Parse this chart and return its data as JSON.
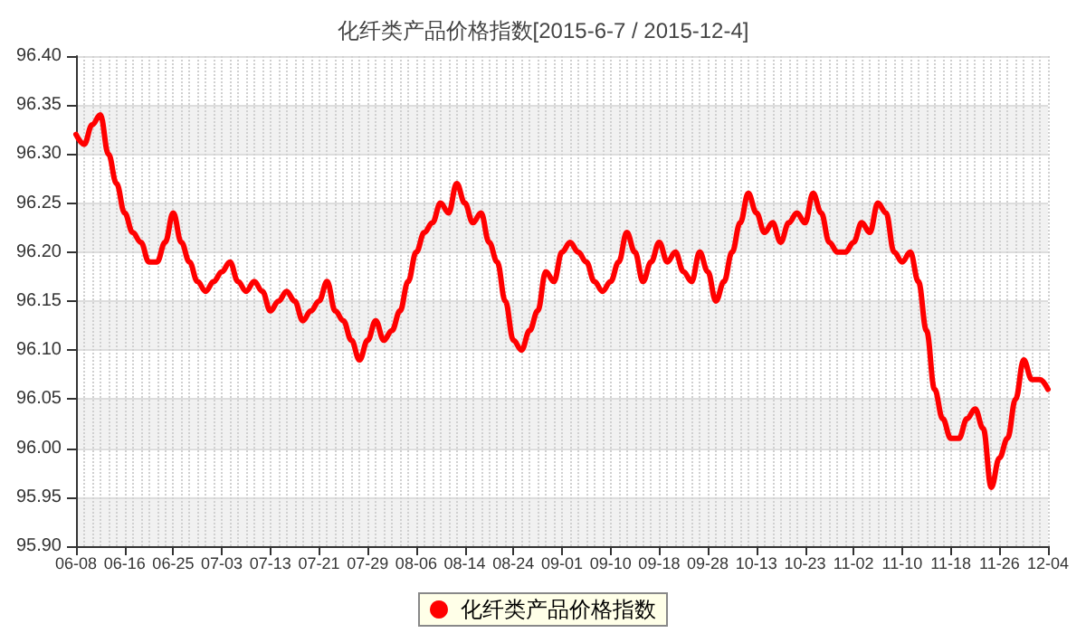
{
  "chart_data": {
    "type": "line",
    "title": "化纤类产品价格指数[2015-6-7 / 2015-12-4]",
    "categories": [
      "06-08",
      null,
      null,
      null,
      null,
      null,
      "06-16",
      null,
      null,
      null,
      null,
      null,
      "06-25",
      null,
      null,
      null,
      null,
      null,
      "07-03",
      null,
      null,
      null,
      null,
      null,
      "07-13",
      null,
      null,
      null,
      null,
      null,
      "07-21",
      null,
      null,
      null,
      null,
      null,
      "07-29",
      null,
      null,
      null,
      null,
      null,
      "08-06",
      null,
      null,
      null,
      null,
      null,
      "08-14",
      null,
      null,
      null,
      null,
      null,
      "08-24",
      null,
      null,
      null,
      null,
      null,
      "09-01",
      null,
      null,
      null,
      null,
      null,
      "09-10",
      null,
      null,
      null,
      null,
      null,
      "09-18",
      null,
      null,
      null,
      null,
      null,
      "09-28",
      null,
      null,
      null,
      null,
      null,
      "10-13",
      null,
      null,
      null,
      null,
      null,
      "10-23",
      null,
      null,
      null,
      null,
      null,
      "11-02",
      null,
      null,
      null,
      null,
      null,
      "11-10",
      null,
      null,
      null,
      null,
      null,
      "11-18",
      null,
      null,
      null,
      null,
      null,
      "11-26",
      null,
      null,
      null,
      null,
      null,
      "12-04"
    ],
    "series": [
      {
        "name": "化纤类产品价格指数",
        "color": "#ff0000",
        "values": [
          96.32,
          96.31,
          96.33,
          96.34,
          96.3,
          96.27,
          96.24,
          96.22,
          96.21,
          96.19,
          96.19,
          96.21,
          96.24,
          96.21,
          96.19,
          96.17,
          96.16,
          96.17,
          96.18,
          96.19,
          96.17,
          96.16,
          96.17,
          96.16,
          96.14,
          96.15,
          96.16,
          96.15,
          96.13,
          96.14,
          96.15,
          96.17,
          96.14,
          96.13,
          96.11,
          96.09,
          96.11,
          96.13,
          96.11,
          96.12,
          96.14,
          96.17,
          96.2,
          96.22,
          96.23,
          96.25,
          96.24,
          96.27,
          96.25,
          96.23,
          96.24,
          96.21,
          96.19,
          96.15,
          96.11,
          96.1,
          96.12,
          96.14,
          96.18,
          96.17,
          96.2,
          96.21,
          96.2,
          96.19,
          96.17,
          96.16,
          96.17,
          96.19,
          96.22,
          96.2,
          96.17,
          96.19,
          96.21,
          96.19,
          96.2,
          96.18,
          96.17,
          96.2,
          96.18,
          96.15,
          96.17,
          96.2,
          96.23,
          96.26,
          96.24,
          96.22,
          96.23,
          96.21,
          96.23,
          96.24,
          96.23,
          96.26,
          96.24,
          96.21,
          96.2,
          96.2,
          96.21,
          96.23,
          96.22,
          96.25,
          96.24,
          96.2,
          96.19,
          96.2,
          96.17,
          96.12,
          96.06,
          96.03,
          96.01,
          96.01,
          96.03,
          96.04,
          96.02,
          95.96,
          95.99,
          96.01,
          96.05,
          96.09,
          96.07,
          96.07,
          96.06
        ]
      }
    ],
    "ylim": [
      95.9,
      96.4
    ],
    "yticks": [
      {
        "value": 95.9,
        "label": "95.90"
      },
      95.95,
      {
        "value": 96.0,
        "label": "96.00"
      },
      96.05,
      {
        "value": 96.1,
        "label": "96.10"
      },
      96.15,
      {
        "value": 96.2,
        "label": "96.20"
      },
      96.25,
      {
        "value": 96.3,
        "label": "96.30"
      },
      96.35,
      {
        "value": 96.4,
        "label": "96.40"
      }
    ],
    "grid": true,
    "legend": "bottom"
  }
}
